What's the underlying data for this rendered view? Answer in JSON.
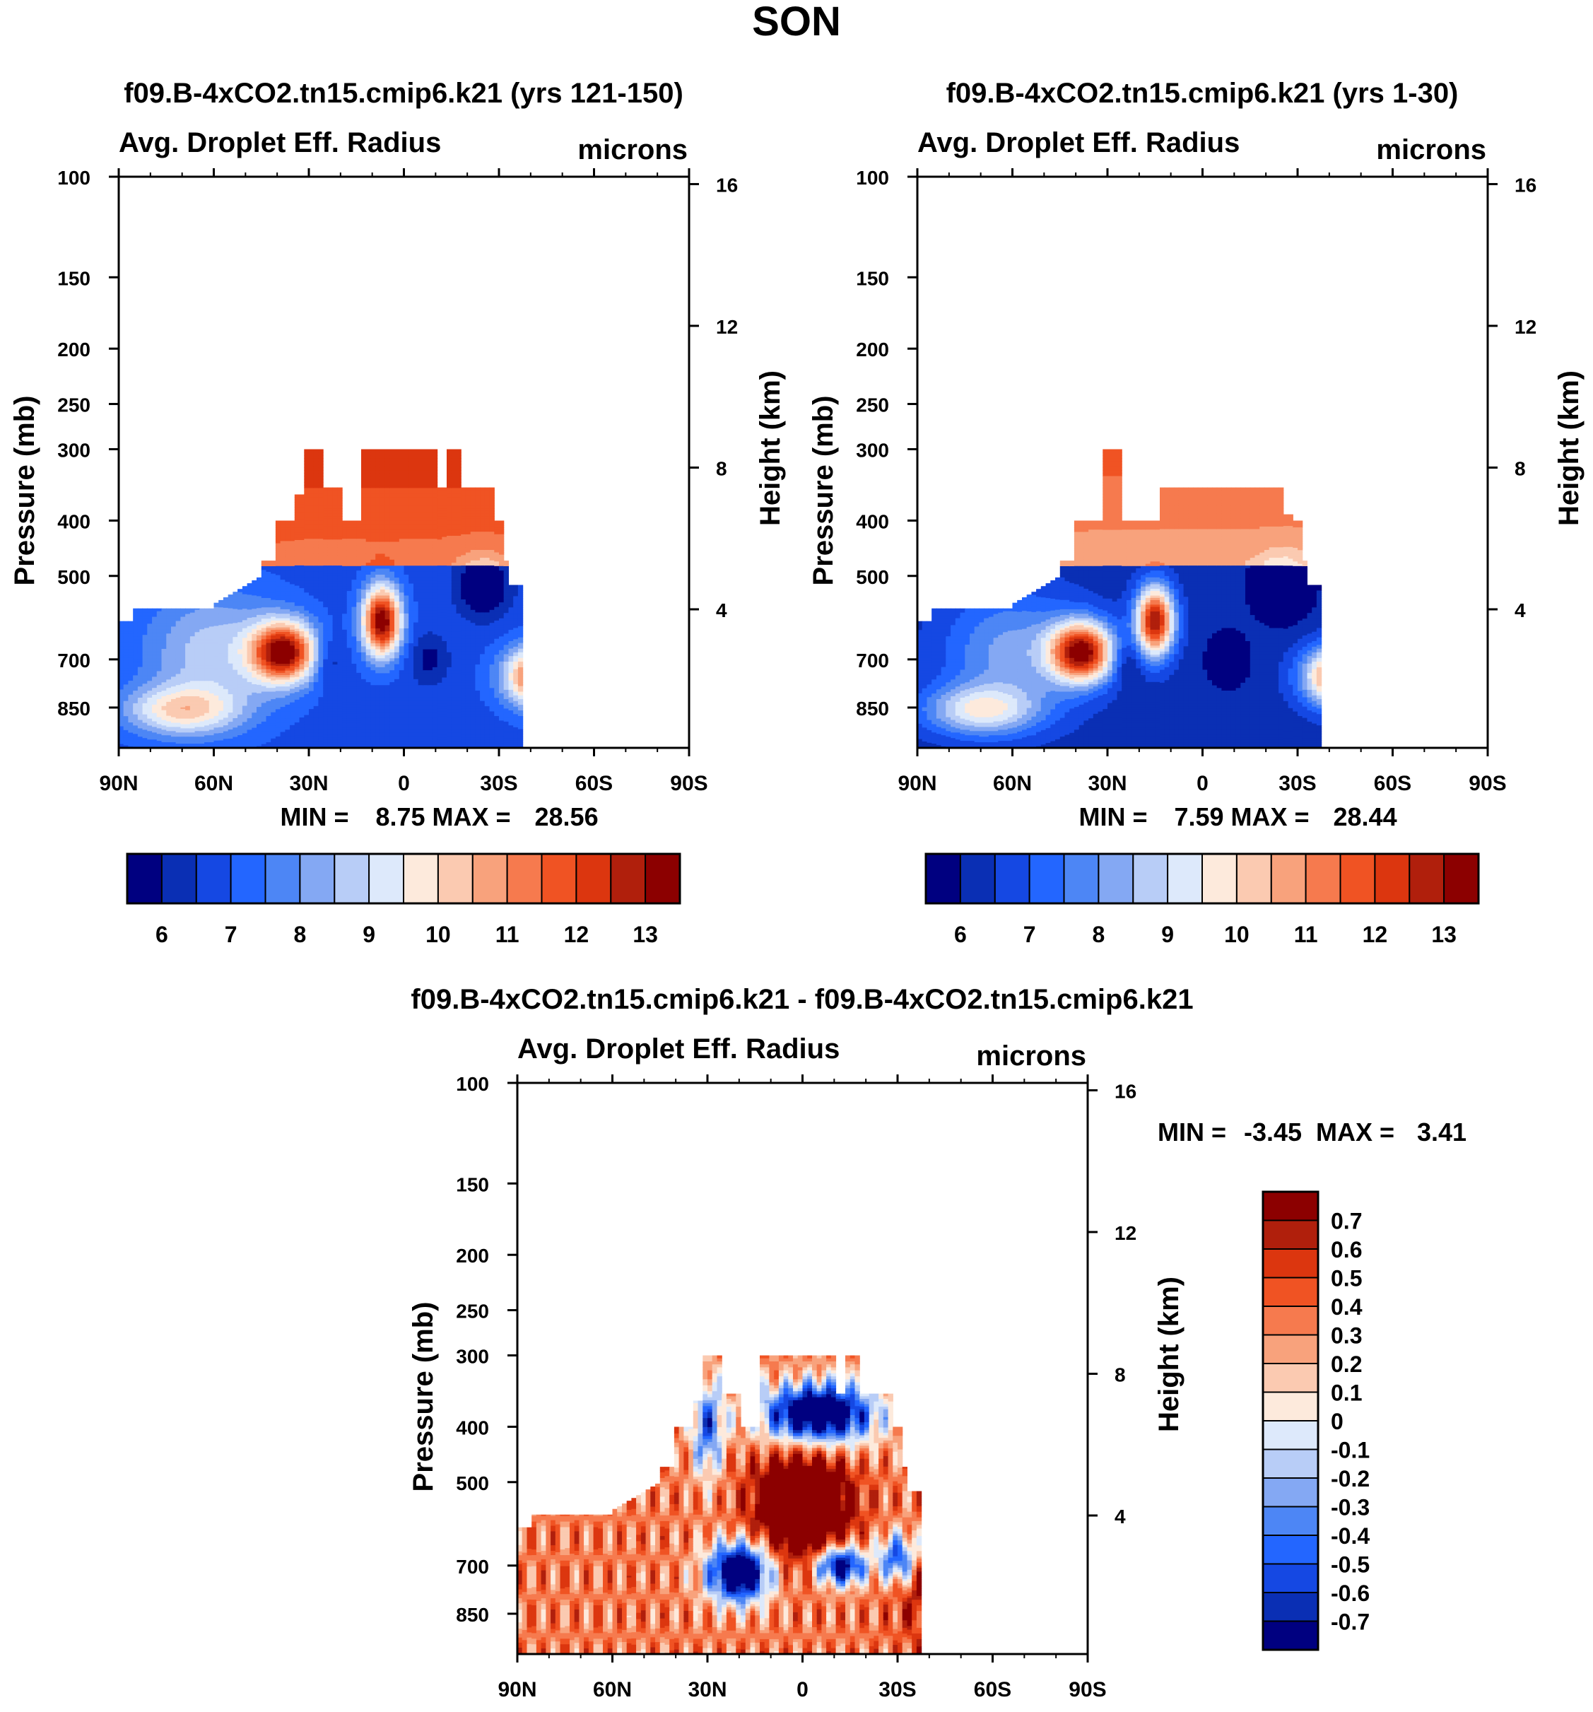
{
  "figure_title": "SON",
  "colors": {
    "abs_scale": [
      "#000080",
      "#0a2fb4",
      "#1548e3",
      "#2366ff",
      "#4d86f5",
      "#84a8f3",
      "#b8cdf7",
      "#dde9fb",
      "#fdeadc",
      "#fbcab1",
      "#f8a27c",
      "#f67a4e",
      "#f05323",
      "#dc360f",
      "#b01f0c",
      "#8c0000"
    ],
    "diff_scale": [
      "#000080",
      "#0a2fb4",
      "#1548e3",
      "#2366ff",
      "#4d86f5",
      "#84a8f3",
      "#b8cdf7",
      "#dde9fb",
      "#fdeadc",
      "#fbcab1",
      "#f8a27c",
      "#f67a4e",
      "#f05323",
      "#dc360f",
      "#b01f0c",
      "#8c0000"
    ],
    "missing": "#ffffff"
  },
  "chart_data": [
    {
      "type": "heatmap",
      "id": "panel-1",
      "title": "f09.B-4xCO2.tn15.cmip6.k21 (yrs 121-150)",
      "left_string": "Avg. Droplet Eff. Radius",
      "right_string": "microns",
      "xlabel": "",
      "ylabel": "Pressure (mb)",
      "ylabel_right": "Height (km)",
      "x_ticks": [
        "90N",
        "60N",
        "30N",
        "0",
        "30S",
        "60S",
        "90S"
      ],
      "y_ticks": [
        "100",
        "150",
        "200",
        "250",
        "300",
        "400",
        "500",
        "700",
        "850"
      ],
      "y_right_ticks": [
        "16",
        "12",
        "8",
        "4"
      ],
      "ylim": [
        100,
        1000
      ],
      "min_label": "MIN =",
      "min_value": "8.75",
      "max_label": "MAX =",
      "max_value": "28.56",
      "colorbar_labels": [
        "6",
        "7",
        "8",
        "9",
        "10",
        "11",
        "12",
        "13"
      ],
      "profile": {
        "top_center": 300,
        "base": 6.8,
        "high_amp": 5.5,
        "nh_max": 13.2,
        "eq_max": 13.6,
        "sh_max": 13.4,
        "eq_lat": -7,
        "nh_lat": -38,
        "sh_lat": 45,
        "variant": 0
      }
    },
    {
      "type": "heatmap",
      "id": "panel-2",
      "title": "f09.B-4xCO2.tn15.cmip6.k21 (yrs 1-30)",
      "left_string": "Avg. Droplet Eff. Radius",
      "right_string": "microns",
      "xlabel": "",
      "ylabel": "Pressure (mb)",
      "ylabel_right": "Height (km)",
      "x_ticks": [
        "90N",
        "60N",
        "30N",
        "0",
        "30S",
        "60S",
        "90S"
      ],
      "y_ticks": [
        "100",
        "150",
        "200",
        "250",
        "300",
        "400",
        "500",
        "700",
        "850"
      ],
      "y_right_ticks": [
        "16",
        "12",
        "8",
        "4"
      ],
      "ylim": [
        100,
        1000
      ],
      "min_label": "MIN =",
      "min_value": "7.59",
      "max_label": "MAX =",
      "max_value": "28.44",
      "colorbar_labels": [
        "6",
        "7",
        "8",
        "9",
        "10",
        "11",
        "12",
        "13"
      ],
      "profile": {
        "top_center": 300,
        "base": 6.2,
        "high_amp": 5.5,
        "nh_max": 13.0,
        "eq_max": 13.0,
        "sh_max": 13.0,
        "eq_lat": -15,
        "nh_lat": -38,
        "sh_lat": 45,
        "variant": 1
      }
    },
    {
      "type": "heatmap",
      "id": "panel-3",
      "title": "f09.B-4xCO2.tn15.cmip6.k21 - f09.B-4xCO2.tn15.cmip6.k21",
      "left_string": "Avg. Droplet Eff. Radius",
      "right_string": "microns",
      "xlabel": "",
      "ylabel": "Pressure (mb)",
      "ylabel_right": "Height (km)",
      "x_ticks": [
        "90N",
        "60N",
        "30N",
        "0",
        "30S",
        "60S",
        "90S"
      ],
      "y_ticks": [
        "100",
        "150",
        "200",
        "250",
        "300",
        "400",
        "500",
        "700",
        "850"
      ],
      "y_right_ticks": [
        "16",
        "12",
        "8",
        "4"
      ],
      "ylim": [
        100,
        1000
      ],
      "min_label": "MIN =",
      "min_value": "-3.45",
      "max_label": "MAX =",
      "max_value": "3.41",
      "colorbar_labels": [
        "0.7",
        "0.6",
        "0.5",
        "0.4",
        "0.3",
        "0.2",
        "0.1",
        "0",
        "-0.1",
        "-0.2",
        "-0.3",
        "-0.4",
        "-0.5",
        "-0.6",
        "-0.7"
      ]
    }
  ]
}
